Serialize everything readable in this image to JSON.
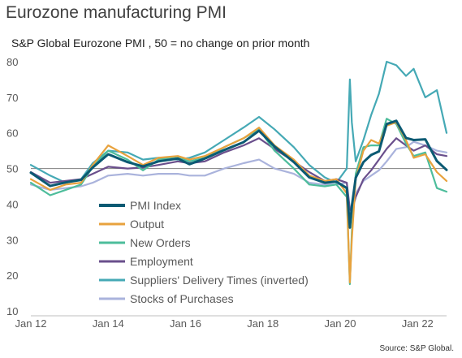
{
  "chart_data": {
    "type": "line",
    "title": "Eurozone manufacturing PMI",
    "subtitle": "S&P Global Eurozone PMI , 50 = no change on prior month",
    "source": "Source: S&P Global.",
    "ylim": [
      10,
      80
    ],
    "y_ticks": [
      "80",
      "70",
      "60",
      "50",
      "40",
      "30",
      "20",
      "10"
    ],
    "y_tick_values": [
      80,
      70,
      60,
      50,
      40,
      30,
      20,
      10
    ],
    "x_ticks": [
      "Jan 12",
      "Jan 14",
      "Jan 16",
      "Jan 18",
      "Jan 20",
      "Jan 22"
    ],
    "x_tick_values": [
      2012,
      2014,
      2016,
      2018,
      2020,
      2022
    ],
    "xlim": [
      2012,
      2022.75
    ],
    "reference_line": 50,
    "legend_position": "lower-left",
    "series": [
      {
        "name": "PMI Index",
        "color": "#0b5a73",
        "x": [
          2012.0,
          2012.5,
          2012.9,
          2013.3,
          2013.6,
          2014.0,
          2014.5,
          2014.9,
          2015.3,
          2015.8,
          2016.1,
          2016.5,
          2017.0,
          2017.5,
          2017.9,
          2018.3,
          2018.8,
          2019.2,
          2019.6,
          2019.9,
          2020.17,
          2020.25,
          2020.3,
          2020.4,
          2020.6,
          2020.8,
          2021.0,
          2021.2,
          2021.45,
          2021.7,
          2021.9,
          2022.2,
          2022.5,
          2022.75
        ],
        "y": [
          48.8,
          45.1,
          46.1,
          46.8,
          50.3,
          54.0,
          51.8,
          50.6,
          52.0,
          52.8,
          51.2,
          52.8,
          55.2,
          57.4,
          60.6,
          56.2,
          51.8,
          47.5,
          46.0,
          46.3,
          44.5,
          33.4,
          39.4,
          47.4,
          51.8,
          53.8,
          54.8,
          62.5,
          63.4,
          58.6,
          58.0,
          58.2,
          52.1,
          49.6
        ]
      },
      {
        "name": "Output",
        "color": "#e8a23d",
        "x": [
          2012.0,
          2012.5,
          2012.9,
          2013.3,
          2013.6,
          2014.0,
          2014.5,
          2014.9,
          2015.3,
          2015.8,
          2016.1,
          2016.5,
          2017.0,
          2017.5,
          2017.9,
          2018.3,
          2018.8,
          2019.2,
          2019.6,
          2019.9,
          2020.17,
          2020.25,
          2020.3,
          2020.4,
          2020.6,
          2020.8,
          2021.0,
          2021.2,
          2021.45,
          2021.7,
          2021.9,
          2022.2,
          2022.5,
          2022.75
        ],
        "y": [
          47.0,
          44.0,
          45.5,
          46.0,
          51.0,
          56.5,
          53.5,
          51.0,
          53.0,
          53.5,
          52.5,
          53.5,
          56.0,
          58.5,
          61.5,
          56.5,
          52.5,
          48.0,
          46.5,
          47.0,
          43.0,
          18.0,
          30.0,
          47.0,
          55.0,
          58.0,
          57.0,
          62.0,
          63.0,
          58.0,
          53.0,
          54.0,
          49.0,
          46.5
        ]
      },
      {
        "name": "New Orders",
        "color": "#4dbd9b",
        "x": [
          2012.0,
          2012.5,
          2012.9,
          2013.3,
          2013.6,
          2014.0,
          2014.5,
          2014.9,
          2015.3,
          2015.8,
          2016.1,
          2016.5,
          2017.0,
          2017.5,
          2017.9,
          2018.3,
          2018.8,
          2019.2,
          2019.6,
          2019.9,
          2020.17,
          2020.25,
          2020.3,
          2020.4,
          2020.6,
          2020.8,
          2021.0,
          2021.2,
          2021.45,
          2021.7,
          2021.9,
          2022.2,
          2022.5,
          2022.75
        ],
        "y": [
          46.0,
          42.5,
          44.0,
          45.5,
          50.5,
          55.0,
          52.5,
          49.5,
          52.5,
          53.0,
          52.0,
          53.0,
          56.0,
          58.5,
          61.0,
          55.0,
          50.0,
          45.5,
          45.0,
          45.5,
          42.0,
          17.5,
          32.0,
          48.5,
          56.0,
          56.5,
          56.5,
          64.0,
          62.5,
          57.0,
          53.5,
          54.5,
          44.5,
          43.5
        ]
      },
      {
        "name": "Employment",
        "color": "#6a4f8c",
        "x": [
          2012.0,
          2012.5,
          2012.9,
          2013.3,
          2013.6,
          2014.0,
          2014.5,
          2014.9,
          2015.3,
          2015.8,
          2016.1,
          2016.5,
          2017.0,
          2017.5,
          2017.9,
          2018.3,
          2018.8,
          2019.2,
          2019.6,
          2019.9,
          2020.17,
          2020.25,
          2020.3,
          2020.4,
          2020.6,
          2020.8,
          2021.0,
          2021.2,
          2021.45,
          2021.7,
          2021.9,
          2022.2,
          2022.5,
          2022.75
        ],
        "y": [
          49.0,
          46.0,
          46.5,
          47.0,
          48.5,
          50.5,
          50.0,
          50.3,
          51.0,
          52.0,
          51.5,
          52.0,
          54.5,
          56.5,
          58.5,
          55.5,
          52.0,
          49.0,
          46.5,
          47.0,
          46.0,
          38.5,
          38.0,
          42.0,
          47.0,
          49.5,
          52.5,
          55.5,
          58.5,
          56.5,
          55.0,
          56.5,
          54.0,
          53.5
        ]
      },
      {
        "name": "Suppliers' Delivery Times (inverted)",
        "color": "#45a9b5",
        "x": [
          2012.0,
          2012.5,
          2012.9,
          2013.3,
          2013.6,
          2014.0,
          2014.5,
          2014.9,
          2015.3,
          2015.8,
          2016.1,
          2016.5,
          2017.0,
          2017.5,
          2017.9,
          2018.3,
          2018.8,
          2019.2,
          2019.6,
          2019.9,
          2020.17,
          2020.25,
          2020.3,
          2020.4,
          2020.6,
          2020.8,
          2021.0,
          2021.2,
          2021.45,
          2021.7,
          2021.9,
          2022.2,
          2022.5,
          2022.75
        ],
        "y": [
          51.0,
          48.0,
          46.0,
          47.0,
          51.5,
          55.0,
          54.5,
          52.5,
          53.0,
          52.5,
          53.0,
          54.5,
          58.0,
          61.5,
          64.5,
          61.0,
          56.0,
          51.0,
          47.5,
          46.0,
          50.0,
          75.0,
          63.0,
          52.0,
          58.0,
          65.0,
          71.0,
          80.0,
          79.0,
          76.0,
          78.0,
          70.0,
          72.0,
          60.0
        ]
      },
      {
        "name": "Stocks of Purchases",
        "color": "#aab3dc",
        "x": [
          2012.0,
          2012.5,
          2012.9,
          2013.3,
          2013.6,
          2014.0,
          2014.5,
          2014.9,
          2015.3,
          2015.8,
          2016.1,
          2016.5,
          2017.0,
          2017.5,
          2017.9,
          2018.3,
          2018.8,
          2019.2,
          2019.6,
          2019.9,
          2020.17,
          2020.25,
          2020.3,
          2020.4,
          2020.6,
          2020.8,
          2021.0,
          2021.2,
          2021.45,
          2021.7,
          2021.9,
          2022.2,
          2022.5,
          2022.75
        ],
        "y": [
          45.5,
          44.0,
          44.5,
          45.0,
          46.0,
          48.0,
          48.5,
          48.0,
          48.5,
          48.5,
          48.0,
          48.0,
          50.0,
          51.5,
          52.5,
          50.0,
          48.5,
          46.0,
          45.5,
          45.5,
          46.0,
          37.5,
          38.5,
          43.0,
          46.5,
          48.0,
          49.5,
          52.0,
          55.5,
          56.0,
          57.5,
          56.5,
          55.0,
          54.5
        ]
      }
    ]
  }
}
